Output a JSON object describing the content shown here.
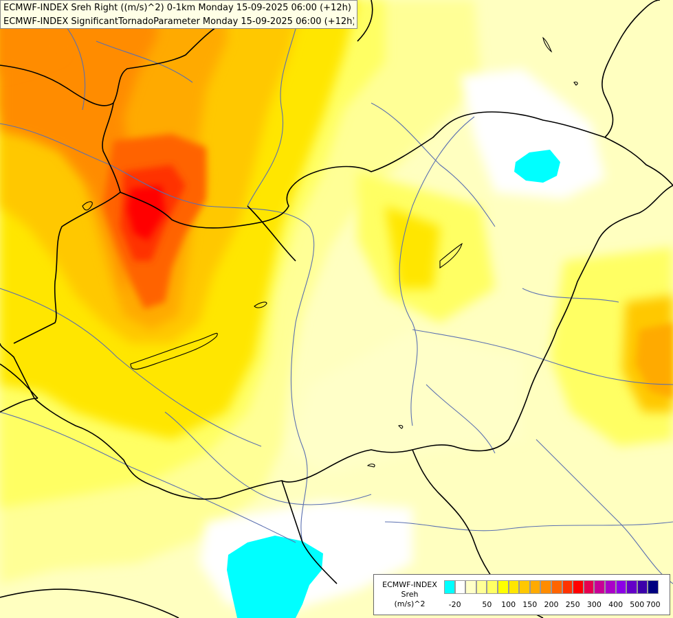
{
  "header": {
    "line1": "ECMWF-INDEX Sreh Right ((m/s)^2) 0-1km Monday 15-09-2025 06:00 (+12h)",
    "line2": "ECMWF-INDEX SignificantTornadoParameter Monday 15-09-2025 06:00 (+12h)"
  },
  "legend": {
    "title": "ECMWF-INDEX",
    "variable": "Sreh",
    "unit": "(m/s)^2",
    "ticks": [
      "-20",
      "50",
      "100",
      "150",
      "200",
      "250",
      "300",
      "400",
      "500",
      "700"
    ],
    "colors": [
      "#00ffff",
      "#ffffff",
      "#ffffc8",
      "#ffff96",
      "#ffff64",
      "#ffff00",
      "#ffe600",
      "#ffc800",
      "#ffaa00",
      "#ff8c00",
      "#ff6400",
      "#ff3200",
      "#ff0000",
      "#e60050",
      "#c80096",
      "#aa00c8",
      "#8c00e6",
      "#6400c8",
      "#3c00aa",
      "#000080"
    ]
  },
  "colors": {
    "background": "#ffffc0",
    "border": "#000000",
    "river": "#5a6fb0"
  }
}
